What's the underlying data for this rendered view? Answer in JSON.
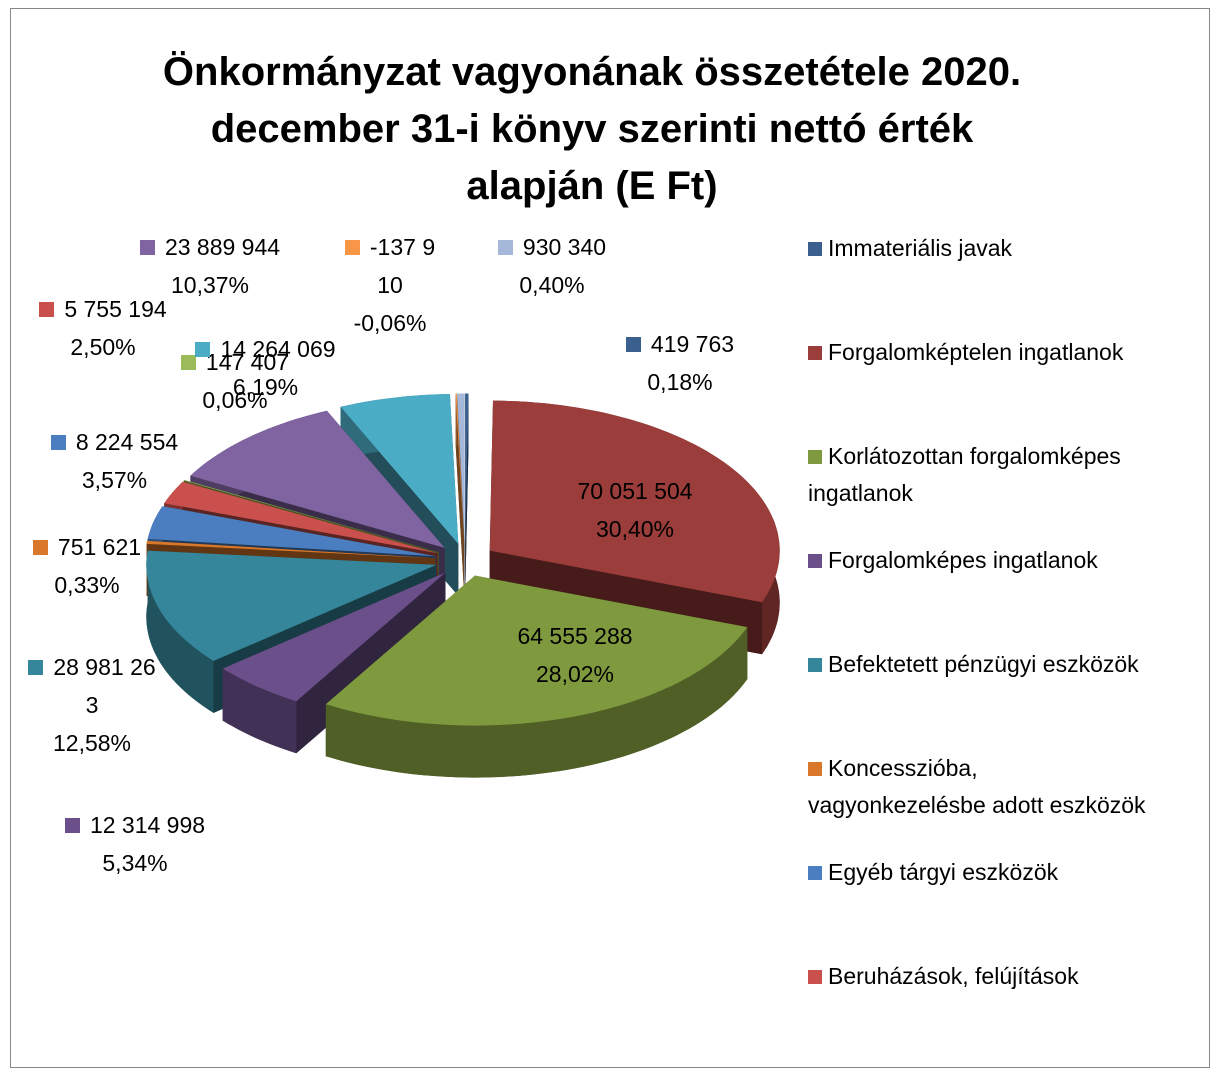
{
  "chart_data": {
    "type": "pie3d",
    "title": "Önkormányzat vagyonának összetétele 2020. december 31-i könyv szerinti nettó érték alapján (E Ft)",
    "categories": [
      "Immateriális javak",
      "Forgalomképtelen ingatlanok",
      "Korlátozottan forgalomképes ingatlanok",
      "Forgalomképes ingatlanok",
      "Befektetett pénzügyi eszközök",
      "Koncesszióba, vagyonkezelésbe adott eszközök",
      "Egyéb tárgyi eszközök",
      "Beruházások, felújítások",
      null,
      null,
      null,
      null,
      null
    ],
    "values": [
      419763,
      70051504,
      64555288,
      12314998,
      28981263,
      751621,
      8224554,
      5755194,
      147407,
      23889944,
      14264069,
      -137910,
      930340
    ],
    "value_labels": [
      "419 763",
      "70 051 504",
      "64 555 288",
      "12 314 998",
      "28 981 263",
      "751 621",
      "8 224 554",
      "5 755 194",
      "147 407",
      "23 889 944",
      "14 264 069",
      "-137 910",
      "930 340"
    ],
    "percents": [
      0.18,
      30.4,
      28.02,
      5.34,
      12.58,
      0.33,
      3.57,
      2.5,
      0.06,
      10.37,
      6.19,
      -0.06,
      0.4
    ],
    "percent_labels": [
      "0,18%",
      "30,40%",
      "28,02%",
      "5,34%",
      "12,58%",
      "0,33%",
      "3,57%",
      "2,50%",
      "0,06%",
      "10,37%",
      "6,19%",
      "-0,06%",
      "0,40%"
    ],
    "colors": [
      "#3b5f8f",
      "#9b3d3a",
      "#7f9a3e",
      "#6b4f8a",
      "#35869a",
      "#d9782b",
      "#4a7ec0",
      "#c9504c",
      "#9bbb59",
      "#8064a2",
      "#4bacc6",
      "#f79646",
      "#a6b8d9"
    ],
    "legend": "right"
  }
}
